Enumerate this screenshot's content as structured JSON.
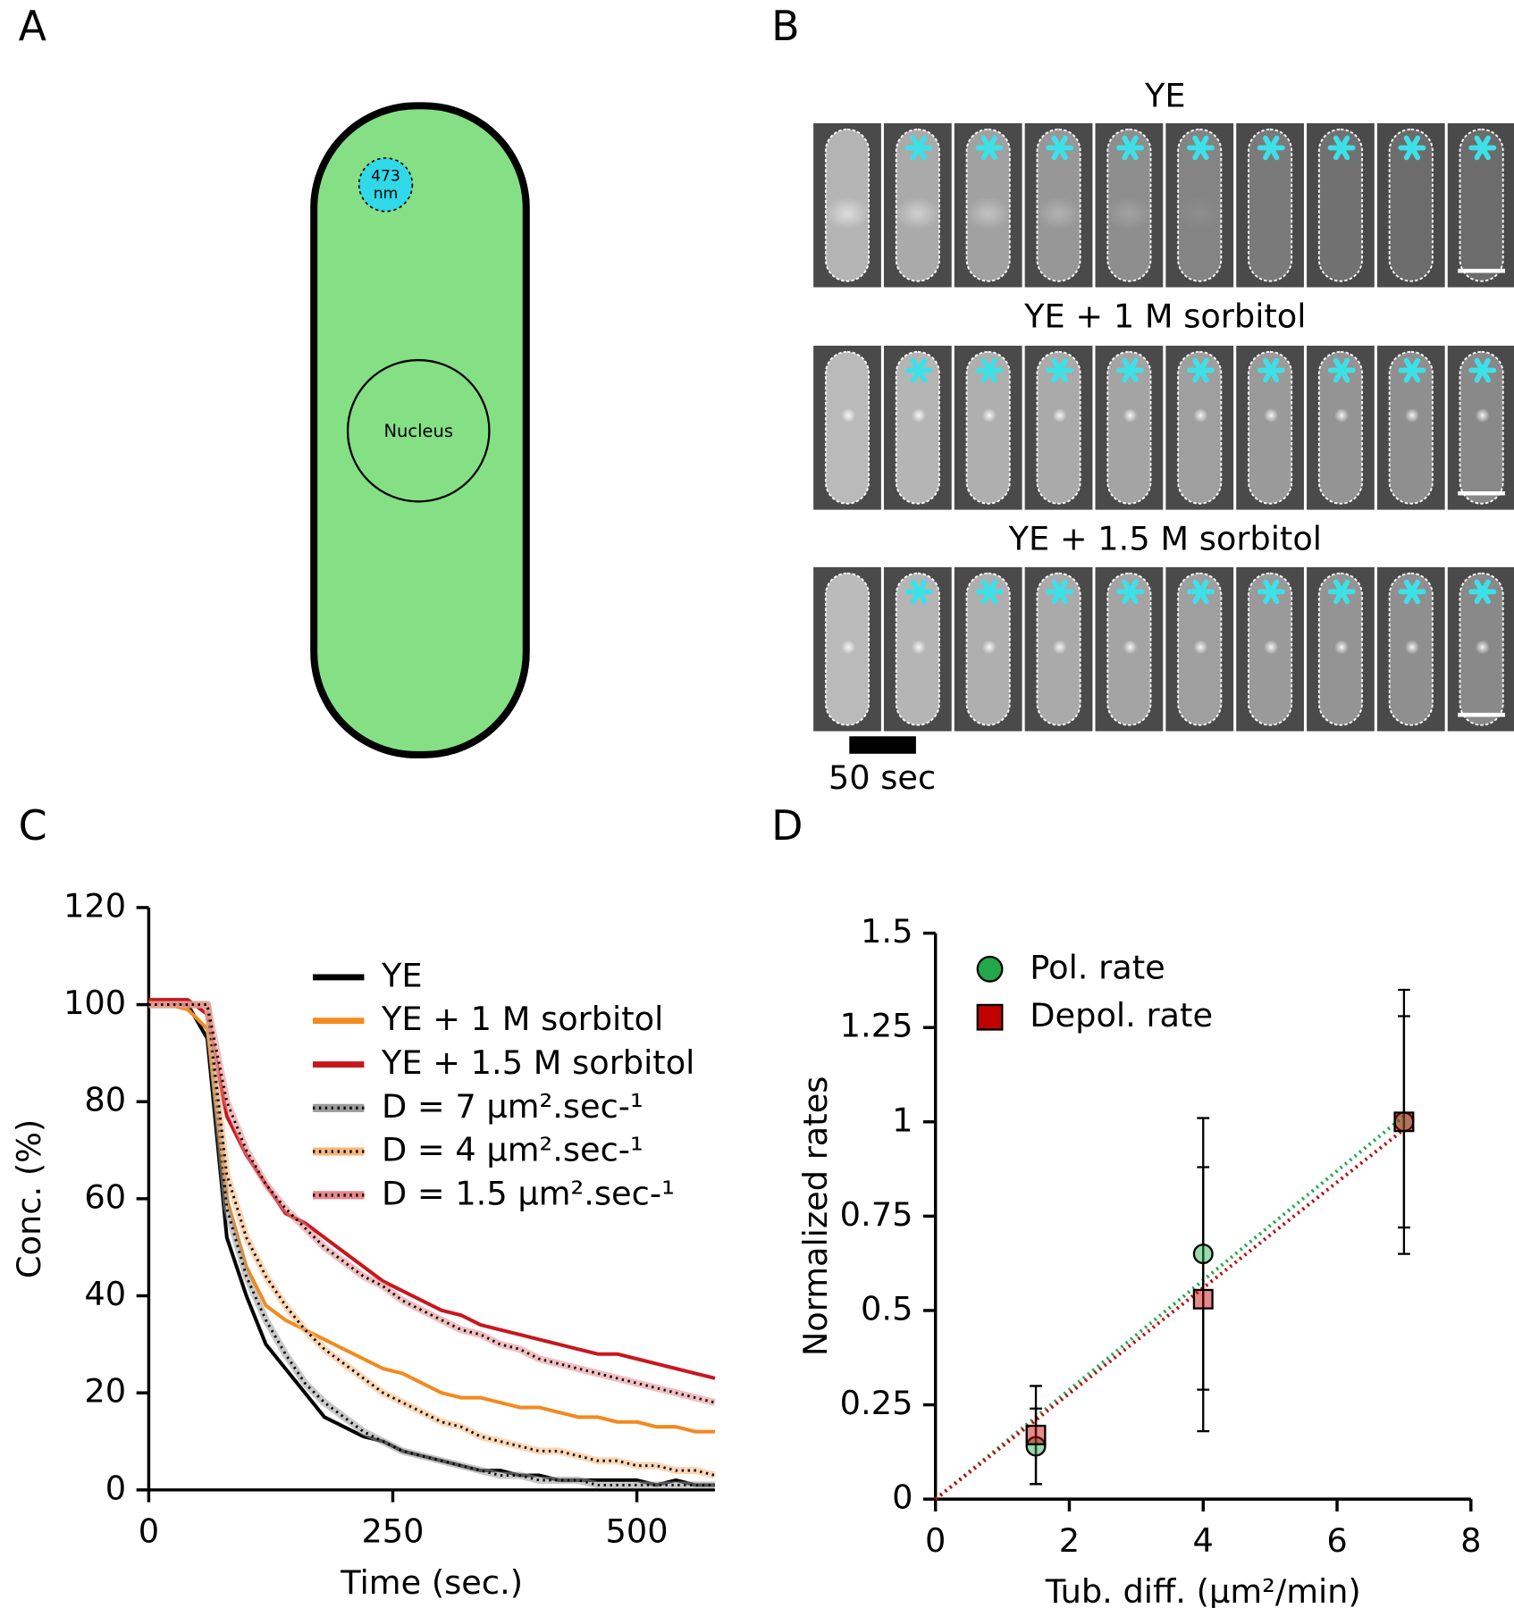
{
  "panel_labels": [
    "A",
    "B",
    "C",
    "D"
  ],
  "diagram": {
    "laser_label": "473\nnm",
    "nucleus_label": "Nucleus"
  },
  "micrographs": {
    "row_titles": [
      "YE",
      "YE + 1 M sorbitol",
      "YE + 1.5 M sorbitol"
    ],
    "time_bar_label": "50 sec"
  },
  "chart_data": [
    {
      "type": "line",
      "xlabel": "Time (sec.)",
      "ylabel": "Conc. (%)",
      "x": [
        0,
        20,
        40,
        60,
        80,
        100,
        120,
        140,
        160,
        180,
        200,
        220,
        240,
        260,
        280,
        300,
        320,
        340,
        360,
        380,
        400,
        420,
        440,
        460,
        480,
        500,
        520,
        540,
        560,
        580
      ],
      "series": [
        {
          "name": "YE",
          "color": "#000000",
          "style": "solid",
          "values": [
            101,
            100,
            100,
            93,
            52,
            40,
            30,
            25,
            20,
            15,
            13,
            11,
            10,
            8,
            7,
            6,
            5,
            4,
            4,
            3,
            3,
            2,
            2,
            2,
            2,
            2,
            1,
            2,
            1,
            1
          ]
        },
        {
          "name": "YE + 1 M sorbitol",
          "color": "#f28a1e",
          "style": "solid",
          "values": [
            101,
            100,
            99,
            95,
            60,
            46,
            38,
            35,
            33,
            31,
            29,
            27,
            25,
            24,
            22,
            20,
            19,
            19,
            18,
            17,
            17,
            16,
            15,
            15,
            14,
            14,
            13,
            13,
            12,
            12
          ]
        },
        {
          "name": "YE + 1.5 M sorbitol",
          "color": "#c8161d",
          "style": "solid",
          "values": [
            101,
            101,
            101,
            98,
            77,
            69,
            63,
            57,
            55,
            52,
            49,
            46,
            43,
            41,
            39,
            37,
            36,
            34,
            33,
            32,
            31,
            30,
            29,
            28,
            28,
            27,
            26,
            25,
            24,
            23
          ]
        },
        {
          "name": "D = 7 µm².sec-¹",
          "color": "#000000",
          "halo": "#9a9a9a",
          "style": "dotted",
          "values": [
            100,
            100,
            100,
            100,
            58,
            44,
            35,
            28,
            22,
            18,
            15,
            12,
            10,
            8,
            7,
            6,
            5,
            4,
            3,
            3,
            2,
            2,
            2,
            1,
            1,
            1,
            1,
            1,
            1,
            1
          ]
        },
        {
          "name": "D = 4 µm².sec-¹",
          "color": "#000000",
          "halo": "#f7b77a",
          "style": "dotted",
          "values": [
            100,
            100,
            100,
            100,
            65,
            52,
            44,
            38,
            33,
            29,
            26,
            23,
            20,
            18,
            16,
            14,
            13,
            11,
            10,
            9,
            8,
            8,
            7,
            6,
            6,
            5,
            5,
            4,
            4,
            3
          ]
        },
        {
          "name": "D = 1.5 µm².sec-¹",
          "color": "#000000",
          "halo": "#e8888c",
          "style": "dotted",
          "values": [
            100,
            100,
            100,
            100,
            80,
            70,
            63,
            58,
            54,
            50,
            47,
            44,
            42,
            39,
            37,
            35,
            33,
            32,
            30,
            29,
            27,
            26,
            25,
            24,
            23,
            22,
            21,
            20,
            19,
            18
          ]
        }
      ],
      "xlim": [
        0,
        580
      ],
      "xticks": [
        0,
        250,
        500
      ],
      "ylim": [
        0,
        120
      ],
      "yticks": [
        0,
        20,
        40,
        60,
        80,
        100,
        120
      ],
      "legend": "upper right"
    },
    {
      "type": "scatter",
      "xlabel": "Tub. diff. (µm²/min)",
      "ylabel": "Normalized rates",
      "x": [
        1.5,
        4,
        7
      ],
      "series": [
        {
          "name": "Pol. rate",
          "color": "#22a84a",
          "marker": "circle",
          "values": [
            0.14,
            0.65,
            1.0
          ],
          "errors": [
            0.1,
            0.36,
            0.35
          ],
          "fit_slope": 0.145
        },
        {
          "name": "Depol. rate",
          "color": "#c00000",
          "marker": "square",
          "values": [
            0.17,
            0.53,
            1.0
          ],
          "errors": [
            0.13,
            0.35,
            0.28
          ],
          "fit_slope": 0.14
        }
      ],
      "xlim": [
        0,
        8
      ],
      "xticks": [
        0,
        2,
        4,
        6,
        8
      ],
      "ylim": [
        0,
        1.5
      ],
      "yticks": [
        0,
        0.25,
        0.5,
        0.75,
        1,
        1.25,
        1.5
      ],
      "legend": "upper left"
    }
  ]
}
